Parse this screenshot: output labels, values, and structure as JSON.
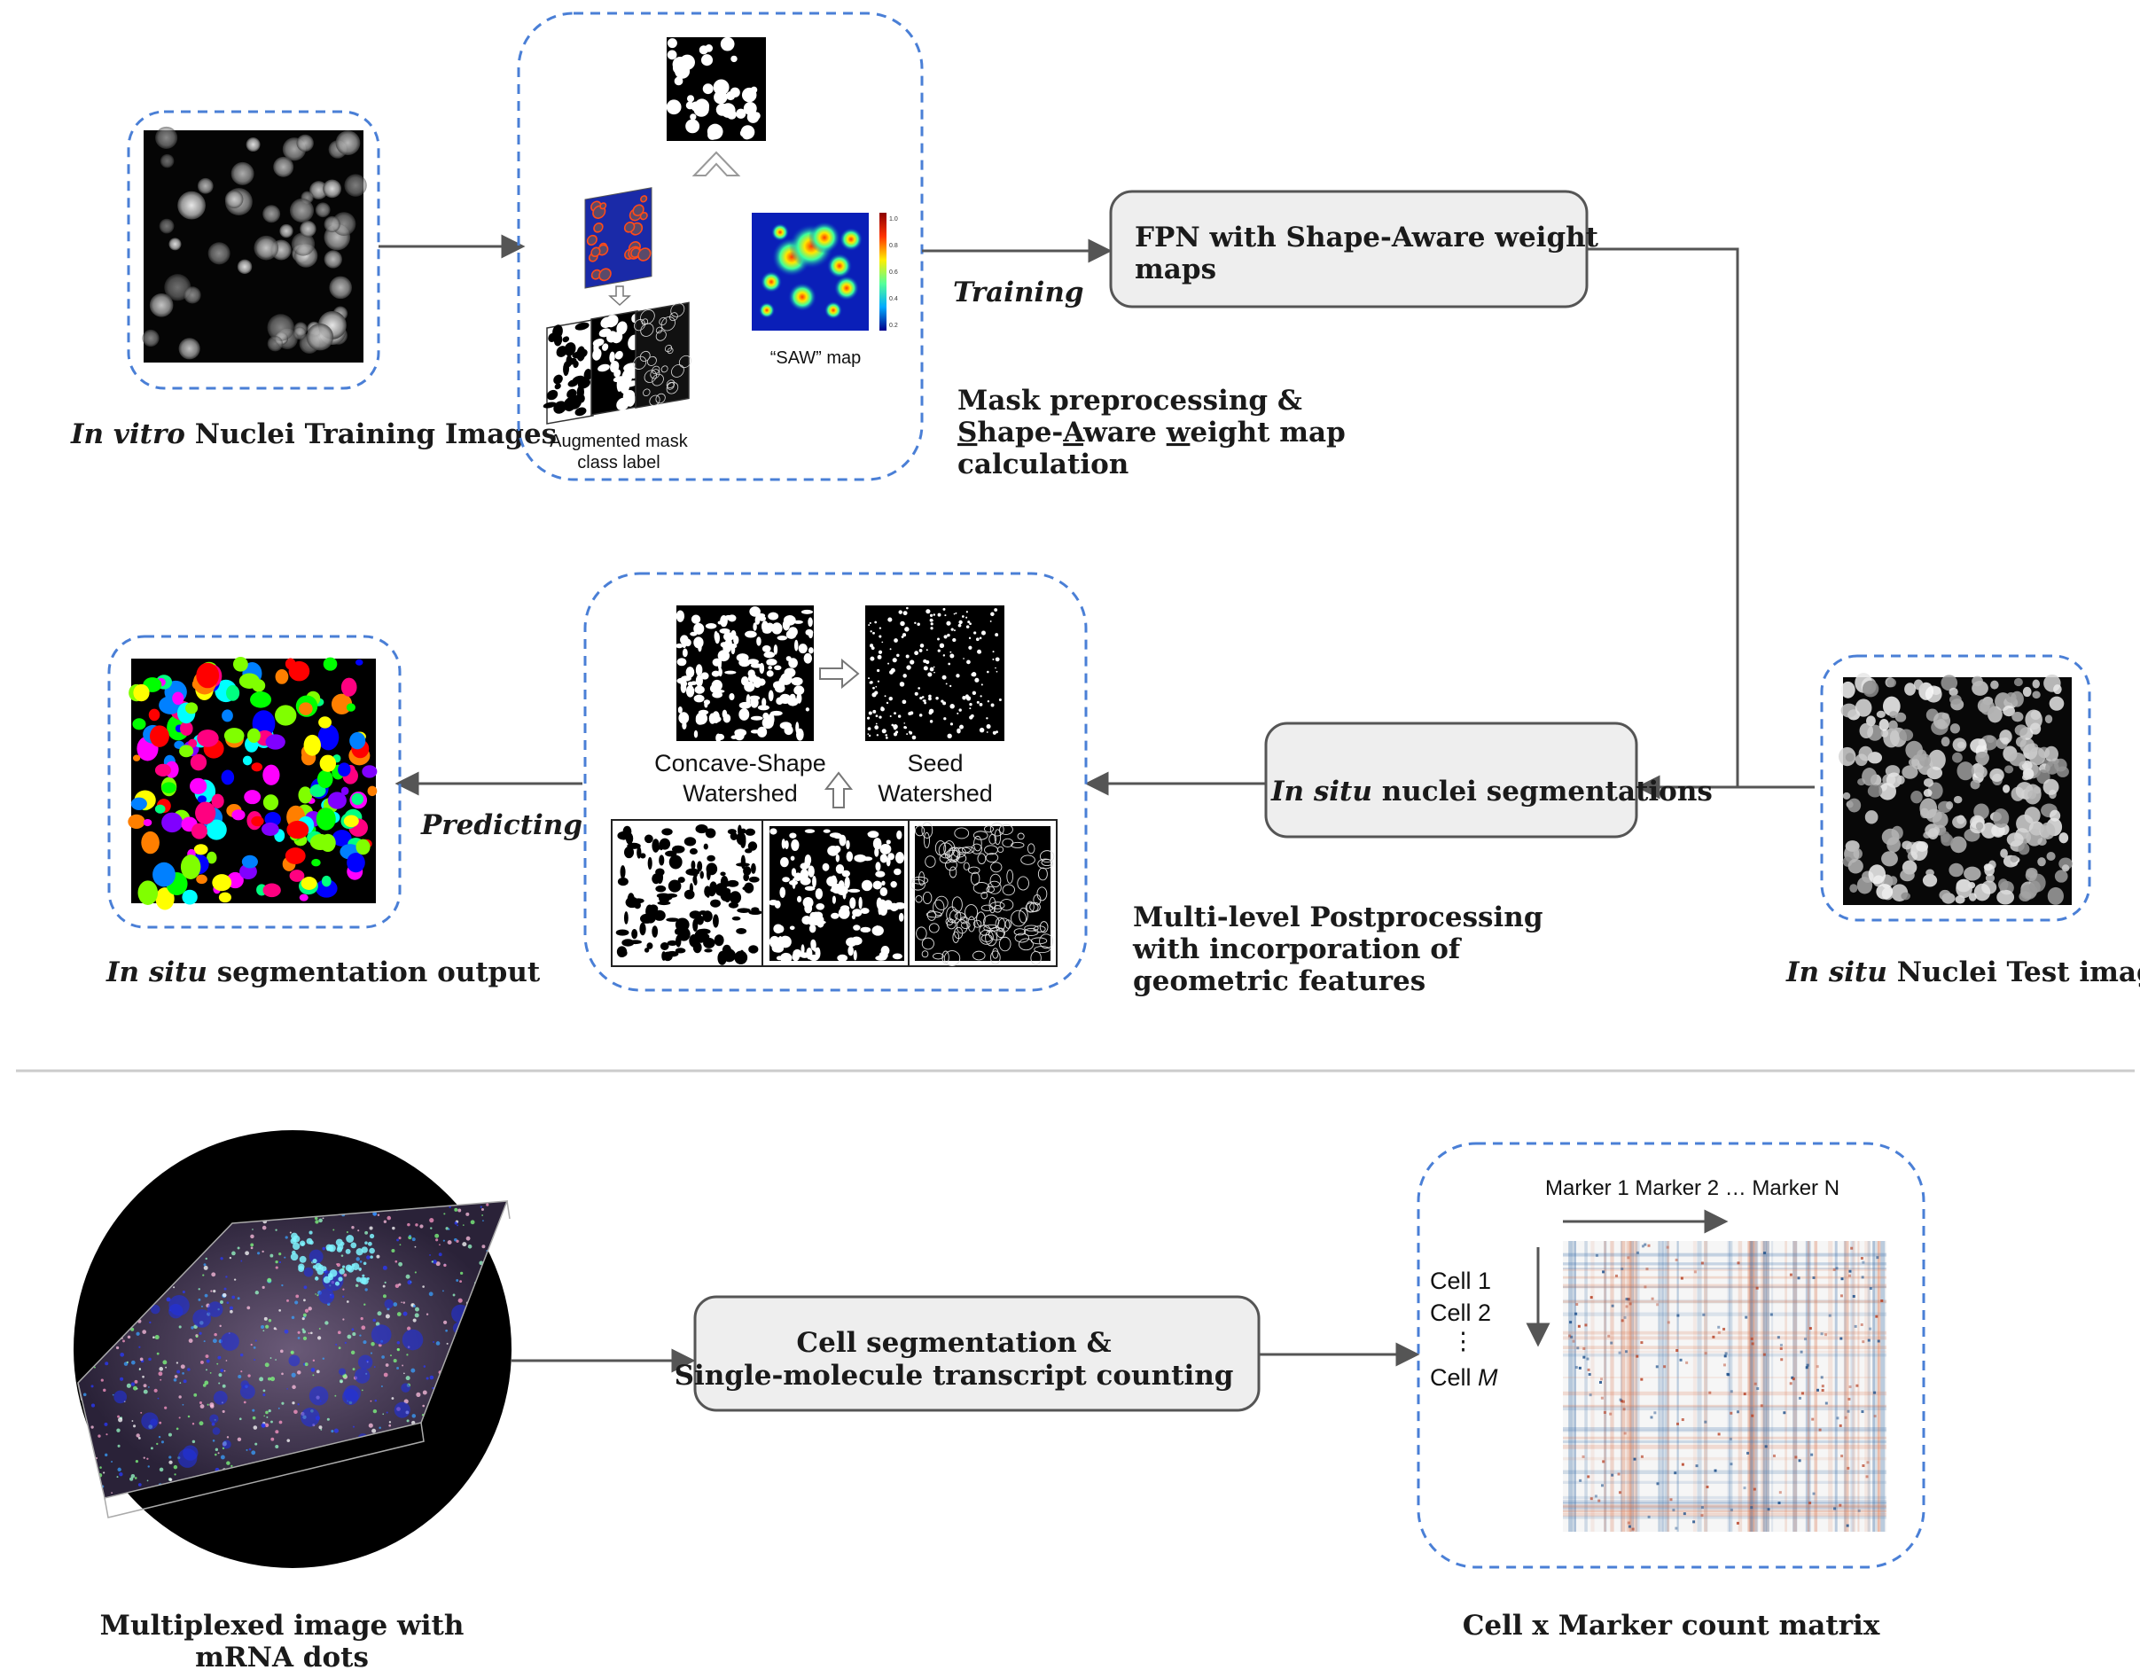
{
  "colors": {
    "dashed_frame": "#4a7fd6",
    "process_fill": "#eeeeee",
    "arrow": "#555555",
    "divider": "#cccccc"
  },
  "top_pipeline": {
    "training_images_caption": {
      "italic": "In vitro",
      "rest": "Nuclei Training Images"
    },
    "preprocess_panel": {
      "augmented_label_line1": "Augmented mask",
      "augmented_label_line2": "class label",
      "saw_label": "“SAW” map",
      "colorbar_ticks": [
        "1.0",
        "0.8",
        "0.6",
        "0.4",
        "0.2"
      ]
    },
    "preprocess_caption": {
      "line1": "Mask preprocessing &",
      "line2_parts": [
        {
          "text": "S",
          "underline": true
        },
        {
          "text": "hape-",
          "underline": false
        },
        {
          "text": "A",
          "underline": true
        },
        {
          "text": "ware ",
          "underline": false
        },
        {
          "text": "w",
          "underline": true
        },
        {
          "text": "eight map",
          "underline": false
        }
      ],
      "line3": "calculation"
    },
    "training_label": "Training",
    "fpn_box": {
      "line1": "FPN with Shape-Aware weight",
      "line2": "maps"
    },
    "test_images_caption": {
      "italic": "In situ",
      "rest": "Nuclei Test images"
    },
    "segmentation_box": {
      "italic": "In situ",
      "rest": "nuclei segmentations"
    },
    "postprocess_panel": {
      "concave_line1": "Concave-Shape",
      "concave_line2": "Watershed",
      "seed_line1": "Seed",
      "seed_line2": "Watershed"
    },
    "postprocess_caption": {
      "line1": "Multi-level Postprocessing",
      "line2": "with incorporation of",
      "line3": "geometric features"
    },
    "predicting_label": "Predicting",
    "output_caption": {
      "italic": "In situ",
      "rest": "segmentation output"
    }
  },
  "bottom_pipeline": {
    "multiplexed_caption": {
      "line1": "Multiplexed image with",
      "line2": "mRNA dots"
    },
    "counting_box": {
      "line1": "Cell  segmentation &",
      "line2": "Single-molecule transcript counting"
    },
    "matrix_panel": {
      "marker_header": "Marker 1 Marker 2 … Marker N",
      "cell_rows": [
        "Cell 1",
        "Cell 2",
        "⋮"
      ],
      "cell_last": {
        "prefix": "Cell ",
        "italic": "M"
      }
    },
    "matrix_caption": "Cell x Marker count matrix"
  }
}
